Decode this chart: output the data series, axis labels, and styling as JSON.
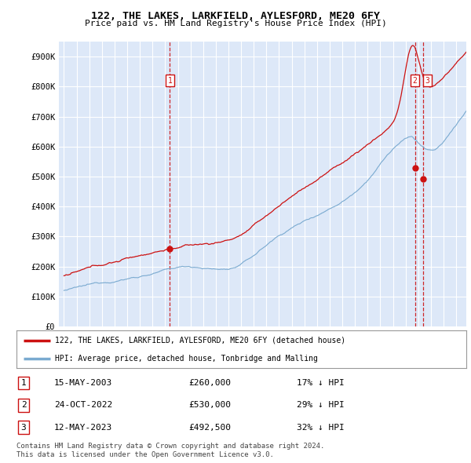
{
  "title": "122, THE LAKES, LARKFIELD, AYLESFORD, ME20 6FY",
  "subtitle": "Price paid vs. HM Land Registry's House Price Index (HPI)",
  "ylim": [
    0,
    950000
  ],
  "yticks": [
    0,
    100000,
    200000,
    300000,
    400000,
    500000,
    600000,
    700000,
    800000,
    900000
  ],
  "ytick_labels": [
    "£0",
    "£100K",
    "£200K",
    "£300K",
    "£400K",
    "£500K",
    "£600K",
    "£700K",
    "£800K",
    "£900K"
  ],
  "background_color": "#ffffff",
  "plot_bg_color": "#dde8f8",
  "grid_color": "#ffffff",
  "hpi_color": "#7aaad0",
  "price_color": "#cc1111",
  "dashed_line_color": "#cc1111",
  "sale_years": [
    2003.37,
    2022.79,
    2023.37
  ],
  "sale_prices": [
    260000,
    530000,
    492500
  ],
  "sale_labels": [
    "1",
    "2 3"
  ],
  "legend_property_label": "122, THE LAKES, LARKFIELD, AYLESFORD, ME20 6FY (detached house)",
  "legend_hpi_label": "HPI: Average price, detached house, Tonbridge and Malling",
  "table_rows": [
    {
      "num": "1",
      "date": "15-MAY-2003",
      "price": "£260,000",
      "change": "17% ↓ HPI"
    },
    {
      "num": "2",
      "date": "24-OCT-2022",
      "price": "£530,000",
      "change": "29% ↓ HPI"
    },
    {
      "num": "3",
      "date": "12-MAY-2023",
      "price": "£492,500",
      "change": "32% ↓ HPI"
    }
  ],
  "footer": "Contains HM Land Registry data © Crown copyright and database right 2024.\nThis data is licensed under the Open Government Licence v3.0.",
  "xstart_year": 1995,
  "xend_year": 2026
}
